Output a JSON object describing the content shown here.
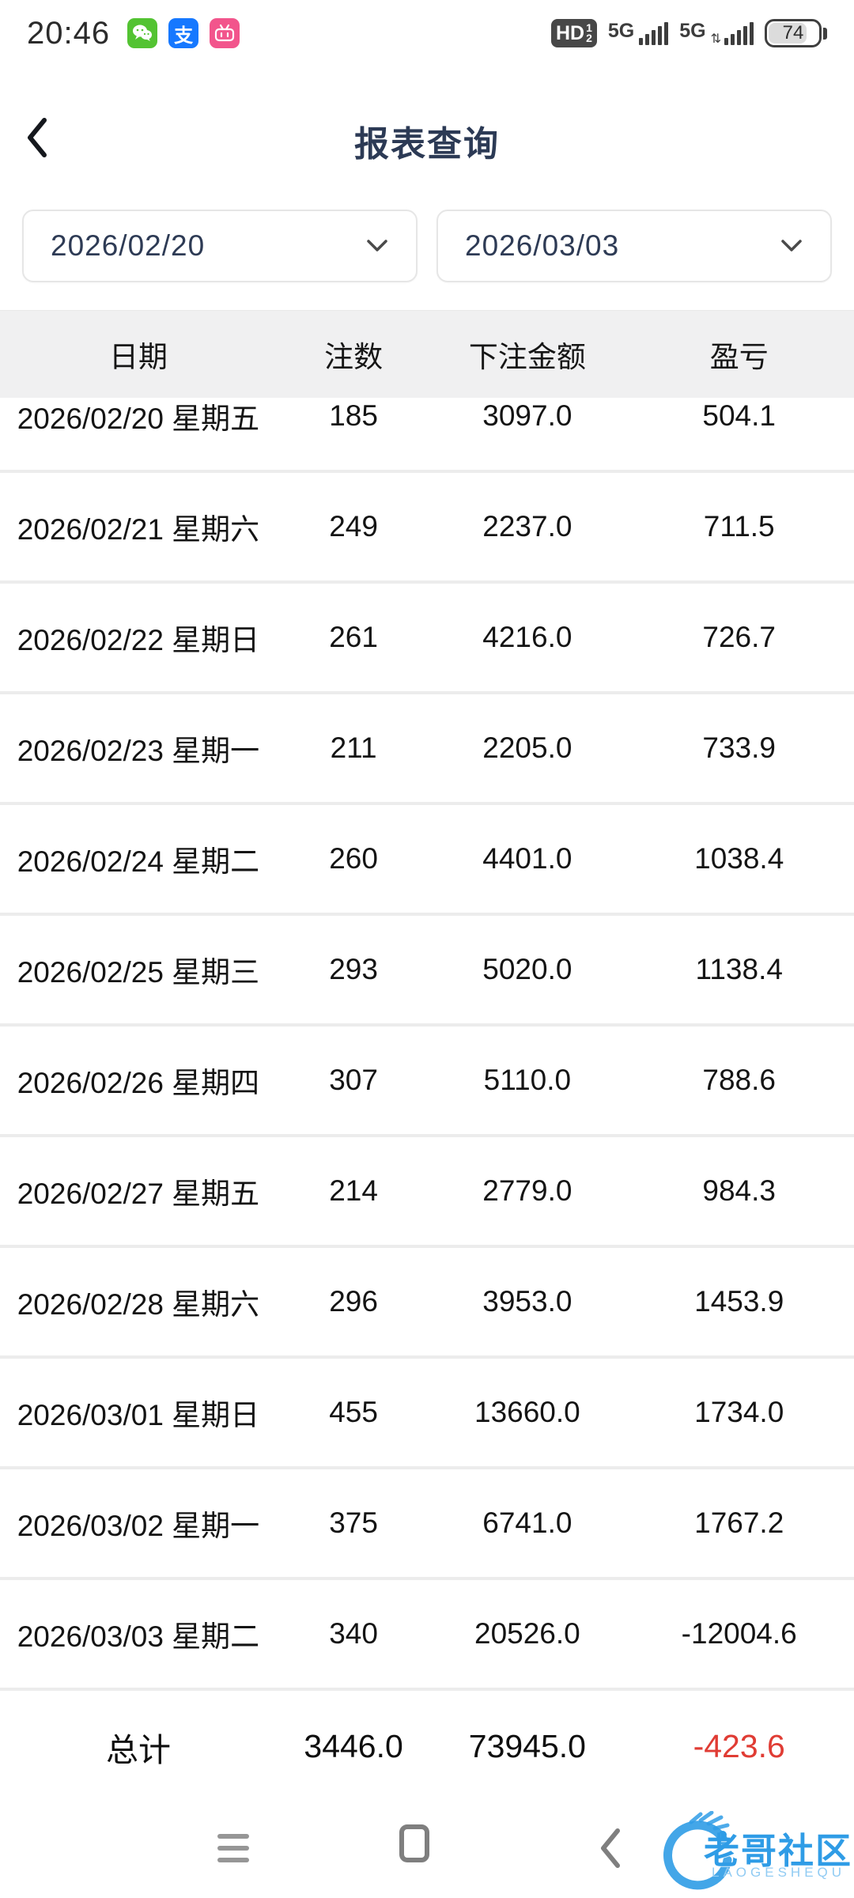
{
  "status_bar": {
    "time": "20:46",
    "app_icons": [
      "wechat",
      "alipay",
      "bilibili"
    ],
    "alipay_glyph": "支",
    "hd_label": "HD",
    "hd_sup": "1",
    "hd_sub": "2",
    "network1_label": "5G",
    "network2_label": "5G",
    "battery_percent": "74"
  },
  "header": {
    "title": "报表查询"
  },
  "filters": {
    "start_date": "2026/02/20",
    "end_date": "2026/03/03"
  },
  "table": {
    "columns": [
      "日期",
      "注数",
      "下注金额",
      "盈亏"
    ],
    "rows": [
      {
        "date": "2026/02/20 星期五",
        "count": "185",
        "amount": "3097.0",
        "profit": "504.1",
        "profit_positive": true
      },
      {
        "date": "2026/02/21 星期六",
        "count": "249",
        "amount": "2237.0",
        "profit": "711.5",
        "profit_positive": true
      },
      {
        "date": "2026/02/22 星期日",
        "count": "261",
        "amount": "4216.0",
        "profit": "726.7",
        "profit_positive": true
      },
      {
        "date": "2026/02/23 星期一",
        "count": "211",
        "amount": "2205.0",
        "profit": "733.9",
        "profit_positive": true
      },
      {
        "date": "2026/02/24 星期二",
        "count": "260",
        "amount": "4401.0",
        "profit": "1038.4",
        "profit_positive": true
      },
      {
        "date": "2026/02/25 星期三",
        "count": "293",
        "amount": "5020.0",
        "profit": "1138.4",
        "profit_positive": true
      },
      {
        "date": "2026/02/26 星期四",
        "count": "307",
        "amount": "5110.0",
        "profit": "788.6",
        "profit_positive": true
      },
      {
        "date": "2026/02/27 星期五",
        "count": "214",
        "amount": "2779.0",
        "profit": "984.3",
        "profit_positive": true
      },
      {
        "date": "2026/02/28 星期六",
        "count": "296",
        "amount": "3953.0",
        "profit": "1453.9",
        "profit_positive": true
      },
      {
        "date": "2026/03/01 星期日",
        "count": "455",
        "amount": "13660.0",
        "profit": "1734.0",
        "profit_positive": true
      },
      {
        "date": "2026/03/02 星期一",
        "count": "375",
        "amount": "6741.0",
        "profit": "1767.2",
        "profit_positive": true
      },
      {
        "date": "2026/03/03 星期二",
        "count": "340",
        "amount": "20526.0",
        "profit": "-12004.6",
        "profit_positive": false
      }
    ],
    "total": {
      "label": "总计",
      "count": "3446.0",
      "amount": "73945.0",
      "profit": "-423.6",
      "profit_positive": false
    }
  },
  "watermark": {
    "title": "老哥社区",
    "subtitle": "LAOGESHEQU"
  },
  "colors": {
    "profit_blue": "#3579cb",
    "loss_red": "#e03c34",
    "title_navy": "#2c3a55",
    "table_header_bg": "#f0f0f1",
    "watermark_blue": "#2f9ce6"
  }
}
